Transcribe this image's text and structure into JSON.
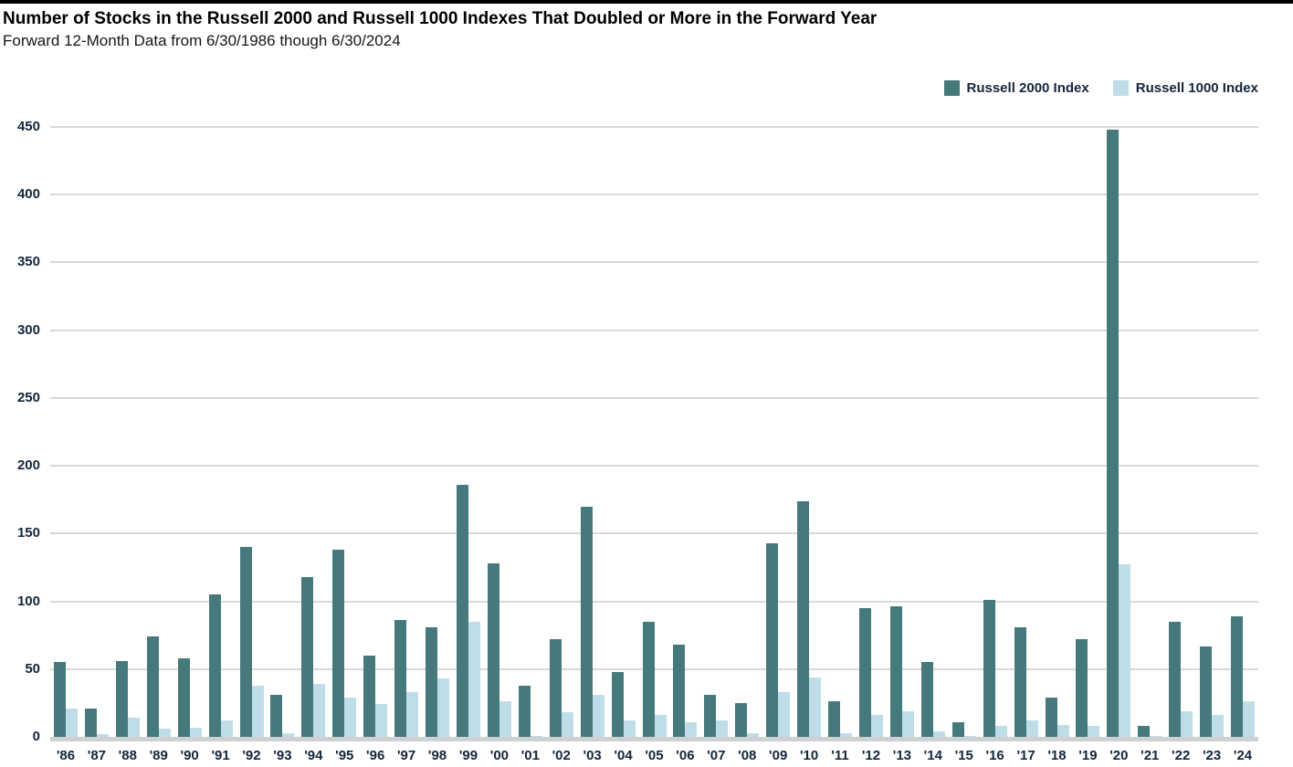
{
  "header": {
    "title": "Number of Stocks in the Russell 2000 and Russell 1000 Indexes That Doubled or More in the Forward Year",
    "subtitle": "Forward 12-Month Data from 6/30/1986 though 6/30/2024"
  },
  "legend": [
    {
      "label": "Russell 2000 Index",
      "color": "#45797B"
    },
    {
      "label": "Russell 1000 Index",
      "color": "#BEDDE7"
    }
  ],
  "chart_data": {
    "type": "bar",
    "title": "Number of Stocks in the Russell 2000 and Russell 1000 Indexes That Doubled or More in the Forward Year",
    "subtitle": "Forward 12-Month Data from 6/30/1986 though 6/30/2024",
    "categories": [
      "'86",
      "'87",
      "'88",
      "'89",
      "'90",
      "'91",
      "'92",
      "'93",
      "'94",
      "'95",
      "'96",
      "'97",
      "'98",
      "'99",
      "'00",
      "'01",
      "'02",
      "'03",
      "'04",
      "'05",
      "'06",
      "'07",
      "'08",
      "'09",
      "'10",
      "'11",
      "'12",
      "'13",
      "'14",
      "'15",
      "'16",
      "'17",
      "'18",
      "'19",
      "'20",
      "'21",
      "'22",
      "'23",
      "'24"
    ],
    "series": [
      {
        "name": "Russell 2000 Index",
        "color": "#45797B",
        "values": [
          55,
          21,
          56,
          74,
          58,
          105,
          140,
          31,
          118,
          138,
          60,
          86,
          81,
          186,
          128,
          38,
          72,
          170,
          48,
          85,
          68,
          31,
          25,
          143,
          174,
          26,
          95,
          96,
          55,
          11,
          101,
          81,
          29,
          72,
          448,
          8,
          85,
          67,
          89
        ]
      },
      {
        "name": "Russell 1000 Index",
        "color": "#BEDDE7",
        "values": [
          21,
          2,
          14,
          6,
          7,
          12,
          38,
          3,
          39,
          29,
          24,
          33,
          43,
          85,
          26,
          1,
          18,
          31,
          12,
          16,
          11,
          12,
          3,
          33,
          44,
          3,
          16,
          19,
          4,
          1,
          8,
          12,
          9,
          8,
          127,
          1,
          19,
          16,
          26
        ]
      }
    ],
    "xlabel": "",
    "ylabel": "",
    "ylim": [
      0,
      450
    ],
    "ytick_step": 50,
    "grid": true,
    "legend_position": "top-right",
    "colors": {
      "axis_label": "#14263C",
      "gridline": "#D9D9D9",
      "baseline": "#CDD1D2"
    }
  }
}
